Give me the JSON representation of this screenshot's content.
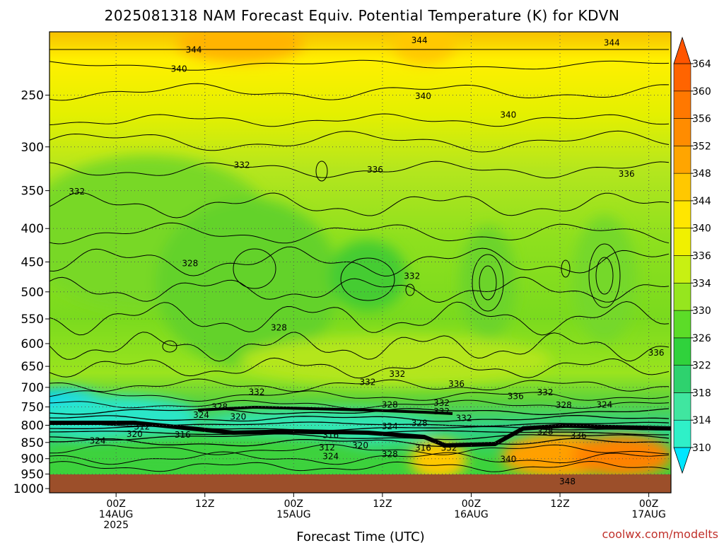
{
  "title": "2025081318 NAM Forecast Equiv. Potential Temperature (K) for KDVN",
  "credit": "coolwx.com/modelts",
  "chart_data": {
    "type": "heatmap",
    "title": "2025081318 NAM Forecast Equiv. Potential Temperature (K) for KDVN",
    "xlabel": "Forecast Time (UTC)",
    "ylabel": "",
    "y_scale": "log-pressure",
    "ylim": [
      1015,
      200
    ],
    "y_ticks": [
      250,
      300,
      350,
      400,
      450,
      500,
      550,
      600,
      650,
      700,
      750,
      800,
      850,
      900,
      950,
      1000
    ],
    "x_range_hours": [
      -3,
      81
    ],
    "x_ticks": [
      {
        "hour": 6,
        "lines": [
          "00Z",
          "14AUG",
          "2025"
        ]
      },
      {
        "hour": 18,
        "lines": [
          "12Z"
        ]
      },
      {
        "hour": 30,
        "lines": [
          "00Z",
          "15AUG"
        ]
      },
      {
        "hour": 42,
        "lines": [
          "12Z"
        ]
      },
      {
        "hour": 54,
        "lines": [
          "00Z",
          "16AUG"
        ]
      },
      {
        "hour": 66,
        "lines": [
          "12Z"
        ]
      },
      {
        "hour": 78,
        "lines": [
          "00Z",
          "17AUG"
        ]
      }
    ],
    "colorbar": {
      "levels": [
        310,
        314,
        318,
        322,
        326,
        330,
        334,
        336,
        340,
        344,
        348,
        352,
        356,
        360,
        364
      ],
      "colors": [
        "#00e6ff",
        "#2ff0c8",
        "#40e6a0",
        "#2ed26e",
        "#30d23c",
        "#5cdc28",
        "#96e61e",
        "#c8f012",
        "#f0f000",
        "#ffe600",
        "#ffc800",
        "#ffa500",
        "#ff8c00",
        "#ff7800",
        "#ff6400",
        "#ff5500"
      ]
    },
    "contour_labels": [
      {
        "value": "344",
        "hour": 16.5,
        "p": 213
      },
      {
        "value": "344",
        "hour": 47,
        "p": 206
      },
      {
        "value": "344",
        "hour": 73,
        "p": 208
      },
      {
        "value": "340",
        "hour": 14.5,
        "p": 228
      },
      {
        "value": "340",
        "hour": 47.5,
        "p": 251
      },
      {
        "value": "340",
        "hour": 59,
        "p": 268
      },
      {
        "value": "332",
        "hour": 23,
        "p": 320
      },
      {
        "value": "336",
        "hour": 41,
        "p": 325
      },
      {
        "value": "336",
        "hour": 75,
        "p": 330
      },
      {
        "value": "332",
        "hour": 0.7,
        "p": 351
      },
      {
        "value": "328",
        "hour": 16,
        "p": 452
      },
      {
        "value": "332",
        "hour": 46,
        "p": 473
      },
      {
        "value": "328",
        "hour": 28,
        "p": 567
      },
      {
        "value": "336",
        "hour": 79,
        "p": 620
      },
      {
        "value": "332",
        "hour": 44,
        "p": 668
      },
      {
        "value": "332",
        "hour": 40,
        "p": 687
      },
      {
        "value": "336",
        "hour": 52,
        "p": 692
      },
      {
        "value": "332",
        "hour": 25,
        "p": 712
      },
      {
        "value": "332",
        "hour": 64,
        "p": 713
      },
      {
        "value": "336",
        "hour": 60,
        "p": 722
      },
      {
        "value": "328",
        "hour": 20,
        "p": 750
      },
      {
        "value": "328",
        "hour": 43,
        "p": 744
      },
      {
        "value": "332",
        "hour": 50,
        "p": 740
      },
      {
        "value": "328",
        "hour": 66.5,
        "p": 745
      },
      {
        "value": "324",
        "hour": 72,
        "p": 744
      },
      {
        "value": "332",
        "hour": 50,
        "p": 762
      },
      {
        "value": "324",
        "hour": 17.5,
        "p": 772
      },
      {
        "value": "320",
        "hour": 22.5,
        "p": 777
      },
      {
        "value": "332",
        "hour": 53,
        "p": 780
      },
      {
        "value": "328",
        "hour": 47,
        "p": 794
      },
      {
        "value": "324",
        "hour": 43,
        "p": 803
      },
      {
        "value": "312",
        "hour": 9.5,
        "p": 804
      },
      {
        "value": "320",
        "hour": 8.5,
        "p": 825
      },
      {
        "value": "316",
        "hour": 15,
        "p": 827
      },
      {
        "value": "328",
        "hour": 64,
        "p": 818
      },
      {
        "value": "336",
        "hour": 68.5,
        "p": 830
      },
      {
        "value": "316",
        "hour": 35,
        "p": 829
      },
      {
        "value": "324",
        "hour": 3.5,
        "p": 845
      },
      {
        "value": "312",
        "hour": 34.5,
        "p": 865
      },
      {
        "value": "320",
        "hour": 39,
        "p": 859
      },
      {
        "value": "316",
        "hour": 47.5,
        "p": 867
      },
      {
        "value": "332",
        "hour": 51,
        "p": 866
      },
      {
        "value": "324",
        "hour": 35,
        "p": 893
      },
      {
        "value": "328",
        "hour": 43,
        "p": 886
      },
      {
        "value": "340",
        "hour": 59,
        "p": 902
      },
      {
        "value": "348",
        "hour": 67,
        "p": 975
      }
    ]
  }
}
